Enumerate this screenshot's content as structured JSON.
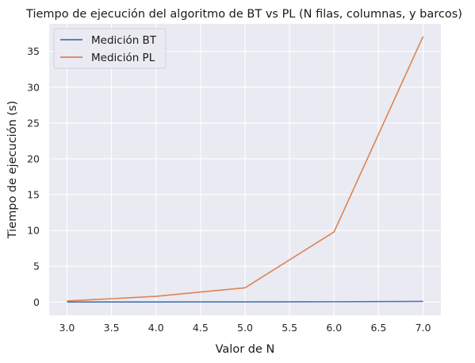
{
  "chart_data": {
    "type": "line",
    "title": "Tiempo de ejecución del algoritmo de BT vs PL (N filas, columnas, y barcos)",
    "xlabel": "Valor de N",
    "ylabel": "Tiempo de ejecución (s)",
    "xlim": [
      2.8,
      7.2
    ],
    "ylim": [
      -1.85,
      38.85
    ],
    "xticks": [
      3.0,
      3.5,
      4.0,
      4.5,
      5.0,
      5.5,
      6.0,
      6.5,
      7.0
    ],
    "xtick_labels": [
      "3.0",
      "3.5",
      "4.0",
      "4.5",
      "5.0",
      "5.5",
      "6.0",
      "6.5",
      "7.0"
    ],
    "yticks": [
      0,
      5,
      10,
      15,
      20,
      25,
      30,
      35
    ],
    "ytick_labels": [
      "0",
      "5",
      "10",
      "15",
      "20",
      "25",
      "30",
      "35"
    ],
    "grid": true,
    "legend_position": "top-left",
    "x": [
      3,
      4,
      5,
      6,
      7
    ],
    "series": [
      {
        "name": "Medición BT",
        "color": "#4c72b0",
        "values": [
          0.01,
          0.02,
          0.03,
          0.05,
          0.1
        ]
      },
      {
        "name": "Medición PL",
        "color": "#dd8452",
        "values": [
          0.15,
          0.8,
          2.0,
          9.8,
          37.1
        ]
      }
    ],
    "background_color": "#eaeaf2",
    "grid_color": "#ffffff"
  }
}
